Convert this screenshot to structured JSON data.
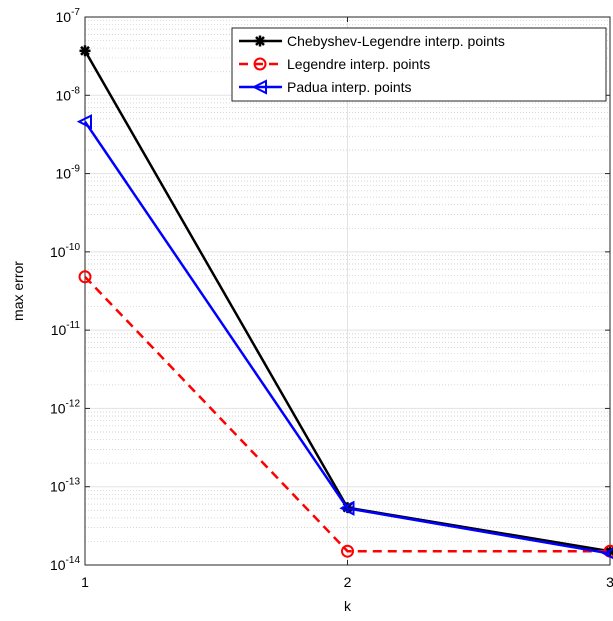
{
  "chart_data": {
    "type": "line",
    "xlabel": "k",
    "ylabel": "max error",
    "y_scale": "log",
    "xlim": [
      1,
      3
    ],
    "ylim": [
      1e-14,
      1e-07
    ],
    "x_ticks": [
      {
        "value": 1,
        "label": "1"
      },
      {
        "value": 2,
        "label": "2"
      },
      {
        "value": 3,
        "label": "3"
      }
    ],
    "y_ticks": [
      {
        "value": 1e-14,
        "base": "10",
        "exponent": "-14"
      },
      {
        "value": 1e-13,
        "base": "10",
        "exponent": "-13"
      },
      {
        "value": 1e-12,
        "base": "10",
        "exponent": "-12"
      },
      {
        "value": 1e-11,
        "base": "10",
        "exponent": "-11"
      },
      {
        "value": 1e-10,
        "base": "10",
        "exponent": "-10"
      },
      {
        "value": 1e-09,
        "base": "10",
        "exponent": "-9"
      },
      {
        "value": 1e-08,
        "base": "10",
        "exponent": "-8"
      },
      {
        "value": 1e-07,
        "base": "10",
        "exponent": "-7"
      }
    ],
    "grid": true,
    "minor_grid": true,
    "legend_position": "top-right",
    "x": [
      1,
      2,
      3
    ],
    "series": [
      {
        "name": "Chebyshev-Legendre interp. points",
        "values": [
          3.7e-08,
          5.4e-14,
          1.5e-14
        ],
        "color": "#000000",
        "dash": "solid",
        "marker": "star"
      },
      {
        "name": "Legendre interp. points",
        "values": [
          4.8e-11,
          1.5e-14,
          1.5e-14
        ],
        "color": "#ff0000",
        "dash": "dashed",
        "marker": "circle"
      },
      {
        "name": "Padua interp. points",
        "values": [
          4.6e-09,
          5.3e-14,
          1.4e-14
        ],
        "color": "#0000ff",
        "dash": "solid",
        "marker": "triangle-left"
      }
    ]
  }
}
